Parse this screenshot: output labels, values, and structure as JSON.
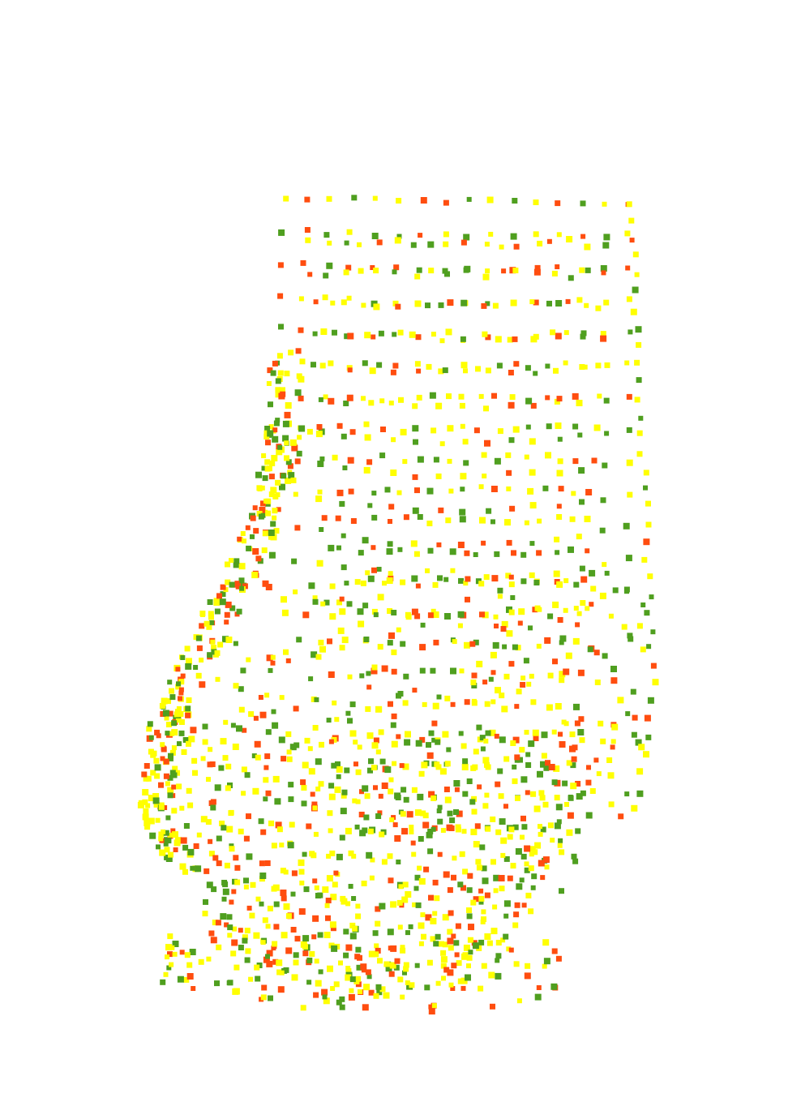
{
  "scene": {
    "kind": "3d-point-cloud",
    "background": "#ffffff",
    "shape": "closed-bottom-cylinder-with-notch",
    "marker": "square",
    "colors": {
      "yellow": "#ffff00",
      "green": "#4f9f1f",
      "red": "#ff4d0f"
    },
    "color_mix": [
      {
        "color": "yellow",
        "share": 0.48
      },
      {
        "color": "green",
        "share": 0.3
      },
      {
        "color": "red",
        "share": 0.22
      }
    ]
  }
}
